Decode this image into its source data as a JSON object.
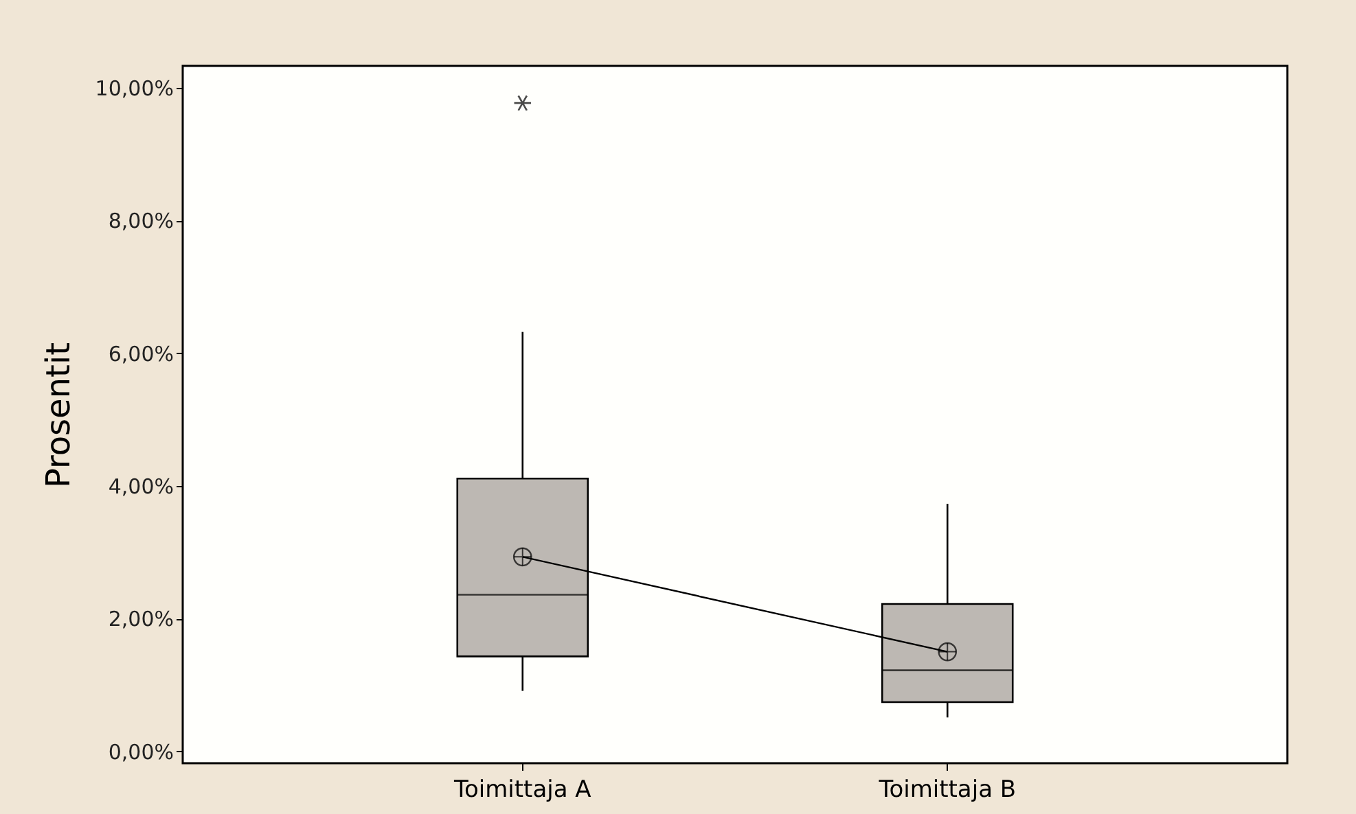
{
  "chart_data": {
    "type": "box",
    "ylabel": "Prosentit",
    "categories": [
      "Toimittaja A",
      "Toimittaja B"
    ],
    "series": [
      {
        "color": "#bdb8b3",
        "boxes": [
          {
            "low": 0.91,
            "q1": 1.43,
            "median": 2.36,
            "q3": 4.11,
            "high": 6.32,
            "mean": 2.93,
            "outliers": [
              9.77
            ]
          },
          {
            "low": 0.51,
            "q1": 0.74,
            "median": 1.22,
            "q3": 2.22,
            "high": 3.73,
            "mean": 1.5
          }
        ]
      },
      {
        "type": "line",
        "color": "#000000",
        "values": [
          2.93,
          1.5
        ],
        "marker": "none"
      }
    ],
    "ylim": [
      -0.18,
      10.33
    ],
    "yticks": [
      {
        "value": 0,
        "label": "0,00%"
      },
      {
        "value": 2,
        "label": "2,00%"
      },
      {
        "value": 4,
        "label": "4,00%"
      },
      {
        "value": 6,
        "label": "6,00%"
      },
      {
        "value": 8,
        "label": "8,00%"
      },
      {
        "value": 10,
        "label": "10,00%"
      }
    ],
    "grid": false
  }
}
